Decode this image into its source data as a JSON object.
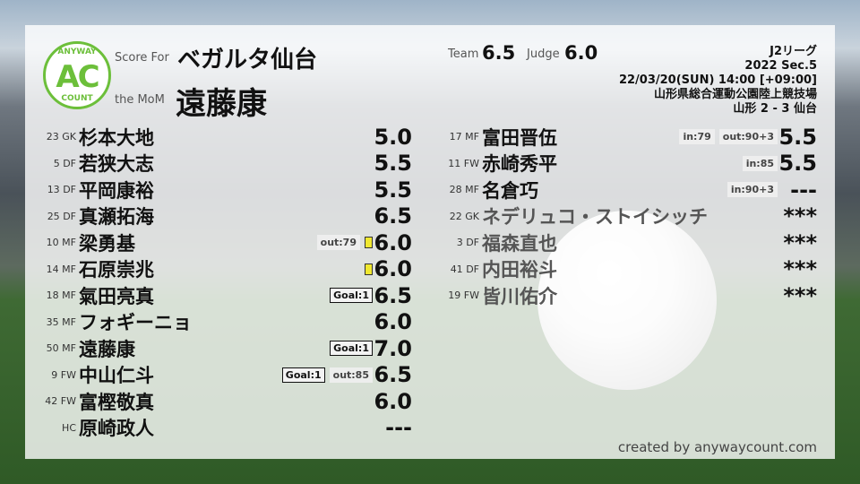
{
  "header": {
    "logo_top": "ANYWAY",
    "logo_main": "AC",
    "logo_bottom": "COUNT",
    "score_for_label": "Score For",
    "team": "ベガルタ仙台",
    "mom_label": "the MoM",
    "mom": "遠藤康",
    "team_label": "Team",
    "team_score": "6.5",
    "judge_label": "Judge",
    "judge_score": "6.0"
  },
  "match": {
    "league": "J2リーグ",
    "section": "2022 Sec.5",
    "datetime": "22/03/20(SUN) 14:00 [+09:00]",
    "venue": "山形県総合運動公園陸上競技場",
    "result": "山形 2 - 3 仙台"
  },
  "starters": [
    {
      "num": "23",
      "pos": "GK",
      "name": "杉本大地",
      "score": "5.0",
      "tags": []
    },
    {
      "num": "5",
      "pos": "DF",
      "name": "若狭大志",
      "score": "5.5",
      "tags": []
    },
    {
      "num": "13",
      "pos": "DF",
      "name": "平岡康裕",
      "score": "5.5",
      "tags": []
    },
    {
      "num": "25",
      "pos": "DF",
      "name": "真瀬拓海",
      "score": "6.5",
      "tags": []
    },
    {
      "num": "10",
      "pos": "MF",
      "name": "梁勇基",
      "score": "6.0",
      "tags": [
        {
          "t": "out",
          "v": "out:79"
        },
        {
          "t": "yellow",
          "v": ""
        }
      ]
    },
    {
      "num": "14",
      "pos": "MF",
      "name": "石原崇兆",
      "score": "6.0",
      "tags": [
        {
          "t": "yellow",
          "v": ""
        }
      ]
    },
    {
      "num": "18",
      "pos": "MF",
      "name": "氣田亮真",
      "score": "6.5",
      "tags": [
        {
          "t": "goal",
          "v": "Goal:1"
        }
      ]
    },
    {
      "num": "35",
      "pos": "MF",
      "name": "フォギーニョ",
      "score": "6.0",
      "tags": []
    },
    {
      "num": "50",
      "pos": "MF",
      "name": "遠藤康",
      "score": "7.0",
      "tags": [
        {
          "t": "goal",
          "v": "Goal:1"
        }
      ]
    },
    {
      "num": "9",
      "pos": "FW",
      "name": "中山仁斗",
      "score": "6.5",
      "tags": [
        {
          "t": "goal",
          "v": "Goal:1"
        },
        {
          "t": "out",
          "v": "out:85"
        }
      ]
    },
    {
      "num": "42",
      "pos": "FW",
      "name": "富樫敬真",
      "score": "6.0",
      "tags": []
    },
    {
      "num": "",
      "pos": "HC",
      "name": "原崎政人",
      "score": "---",
      "tags": []
    }
  ],
  "subs": [
    {
      "num": "17",
      "pos": "MF",
      "name": "富田晋伍",
      "score": "5.5",
      "used": true,
      "tags": [
        {
          "t": "in",
          "v": "in:79"
        },
        {
          "t": "out",
          "v": "out:90+3"
        }
      ]
    },
    {
      "num": "11",
      "pos": "FW",
      "name": "赤崎秀平",
      "score": "5.5",
      "used": true,
      "tags": [
        {
          "t": "in",
          "v": "in:85"
        }
      ]
    },
    {
      "num": "28",
      "pos": "MF",
      "name": "名倉巧",
      "score": "---",
      "used": true,
      "tags": [
        {
          "t": "in",
          "v": "in:90+3"
        }
      ]
    },
    {
      "num": "22",
      "pos": "GK",
      "name": "ネデリュコ・ストイシッチ",
      "score": "***",
      "used": false,
      "tags": []
    },
    {
      "num": "3",
      "pos": "DF",
      "name": "福森直也",
      "score": "***",
      "used": false,
      "tags": []
    },
    {
      "num": "41",
      "pos": "DF",
      "name": "内田裕斗",
      "score": "***",
      "used": false,
      "tags": []
    },
    {
      "num": "19",
      "pos": "FW",
      "name": "皆川佑介",
      "score": "***",
      "used": false,
      "tags": []
    }
  ],
  "footer": {
    "credit": "created by anywaycount.com"
  },
  "colors": {
    "brand": "#6cbf3a",
    "yellow_card": "#f0e830"
  }
}
